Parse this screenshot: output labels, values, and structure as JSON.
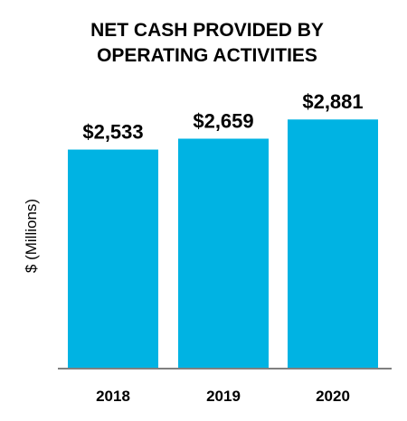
{
  "chart_data": {
    "type": "bar",
    "title": "NET CASH PROVIDED BY OPERATING ACTIVITIES",
    "title_lines": [
      "NET CASH PROVIDED BY",
      "OPERATING ACTIVITIES"
    ],
    "xlabel": "",
    "ylabel": "$ (Millions)",
    "categories": [
      "2018",
      "2019",
      "2020"
    ],
    "values": [
      2533,
      2659,
      2881
    ],
    "data_labels": [
      "$2,533",
      "$2,659",
      "$2,881"
    ],
    "ylim": [
      0,
      3500
    ],
    "grid": false,
    "legend": "none",
    "bar_color": "#00b3e3",
    "axis_color": "#808080"
  }
}
